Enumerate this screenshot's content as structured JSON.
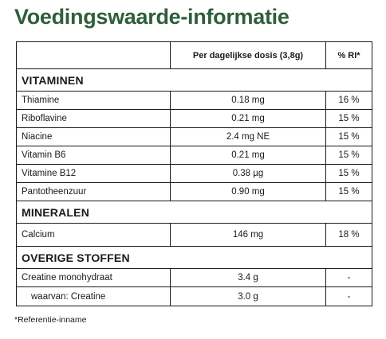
{
  "title": "Voedingswaarde-informatie",
  "table": {
    "headers": [
      "",
      "Per dagelijkse dosis (3,8g)",
      "% RI*"
    ],
    "sections": [
      {
        "name": "VITAMINEN",
        "rows": [
          {
            "name": "Thiamine",
            "amount": "0.18 mg",
            "ri": "16 %"
          },
          {
            "name": "Riboflavine",
            "amount": "0.21 mg",
            "ri": "15 %"
          },
          {
            "name": "Niacine",
            "amount": "2.4 mg NE",
            "ri": "15 %"
          },
          {
            "name": "Vitamin B6",
            "amount": "0.21 mg",
            "ri": "15 %"
          },
          {
            "name": "Vitamine B12",
            "amount": "0.38 µg",
            "ri": "15 %"
          },
          {
            "name": "Pantotheenzuur",
            "amount": "0.90 mg",
            "ri": "15 %"
          }
        ]
      },
      {
        "name": "MINERALEN",
        "rows": [
          {
            "name": "Calcium",
            "amount": "146 mg",
            "ri": "18 %"
          }
        ]
      },
      {
        "name": "OVERIGE STOFFEN",
        "rows": [
          {
            "name": "Creatine monohydraat",
            "amount": "3.4 g",
            "ri": "-"
          },
          {
            "name": "waarvan: Creatine",
            "amount": "3.0 g",
            "ri": "-"
          }
        ]
      }
    ]
  },
  "footnote": "*Referentie-inname"
}
